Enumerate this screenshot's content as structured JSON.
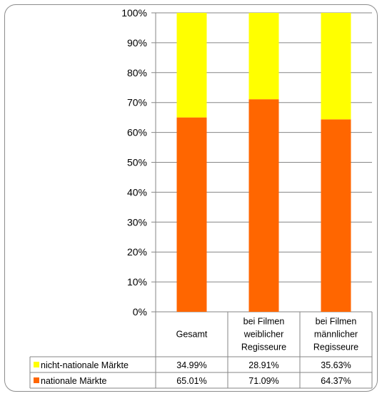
{
  "chart_data": {
    "type": "bar",
    "stacked": true,
    "percent_stacked": true,
    "categories": [
      [
        "Gesamt"
      ],
      [
        "bei Filmen",
        "weiblicher",
        "Regisseure"
      ],
      [
        "bei Filmen",
        "männlicher",
        "Regisseure"
      ]
    ],
    "series": [
      {
        "name": "nationale Märkte",
        "color": "#ff6600",
        "values": [
          65.01,
          71.09,
          64.37
        ],
        "labels": [
          "65.01%",
          "71.09%",
          "64.37%"
        ]
      },
      {
        "name": "nicht-nationale Märkte",
        "color": "#ffff00",
        "values": [
          34.99,
          28.91,
          35.63
        ],
        "labels": [
          "34.99%",
          "28.91%",
          "35.63%"
        ]
      }
    ],
    "y_ticks": [
      "0%",
      "10%",
      "20%",
      "30%",
      "40%",
      "50%",
      "60%",
      "70%",
      "80%",
      "90%",
      "100%"
    ],
    "ylim": [
      0,
      100
    ],
    "grid": true,
    "data_table": true,
    "legend": "data-table-left"
  }
}
